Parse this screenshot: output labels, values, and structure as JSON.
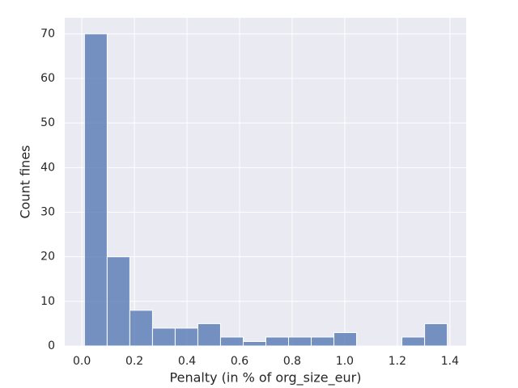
{
  "chart_data": {
    "type": "histogram",
    "xlabel": "Penalty (in % of org_size_eur)",
    "ylabel": "Count fines",
    "bins": [
      0.01,
      0.0963,
      0.1825,
      0.2688,
      0.355,
      0.4413,
      0.5275,
      0.6138,
      0.7,
      0.7863,
      0.8725,
      0.9588,
      1.045,
      1.1313,
      1.2175,
      1.3038,
      1.39
    ],
    "values": [
      70,
      20,
      8,
      4,
      4,
      5,
      2,
      1,
      2,
      2,
      2,
      3,
      0,
      0,
      2,
      5
    ],
    "color": "#4c72b0",
    "xlim": [
      -0.065,
      1.462
    ],
    "ylim": [
      0,
      73.6
    ],
    "xticks": [
      {
        "value": 0,
        "label": "0.0"
      },
      0.2,
      0.4,
      0.6,
      0.8,
      {
        "value": 1,
        "label": "1.0"
      },
      1.2,
      1.4
    ],
    "yticks": [
      0,
      10,
      20,
      30,
      40,
      50,
      60,
      70
    ],
    "grid": true
  }
}
